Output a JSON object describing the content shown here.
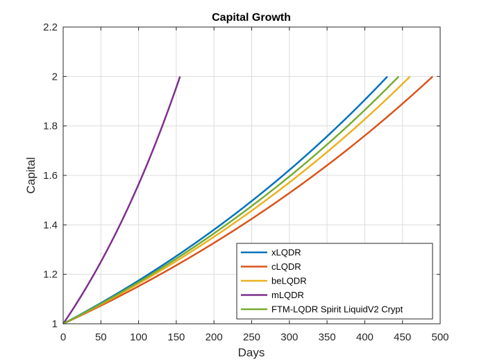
{
  "chart_data": {
    "type": "line",
    "title": "Capital Growth",
    "xlabel": "Days",
    "ylabel": "Capital",
    "xlim": [
      0,
      500
    ],
    "ylim": [
      1,
      2.2
    ],
    "xticks": [
      0,
      50,
      100,
      150,
      200,
      250,
      300,
      350,
      400,
      450,
      500
    ],
    "yticks": [
      1,
      1.2,
      1.4,
      1.6,
      1.8,
      2,
      2.2
    ],
    "grid": true,
    "legend_position": "bottom-right",
    "series": [
      {
        "name": "xLQDR",
        "color": "#0072BD",
        "start": 1,
        "end": 2,
        "end_day": 430
      },
      {
        "name": "cLQDR",
        "color": "#D95319",
        "start": 1,
        "end": 2,
        "end_day": 490
      },
      {
        "name": "beLQDR",
        "color": "#EDB120",
        "start": 1,
        "end": 2,
        "end_day": 460
      },
      {
        "name": "mLQDR",
        "color": "#7E2F8E",
        "start": 1,
        "end": 2,
        "end_day": 155
      },
      {
        "name": "FTM-LQDR Spirit LiquidV2 Crypt",
        "color": "#77AC30",
        "start": 1,
        "end": 2,
        "end_day": 445
      }
    ]
  }
}
